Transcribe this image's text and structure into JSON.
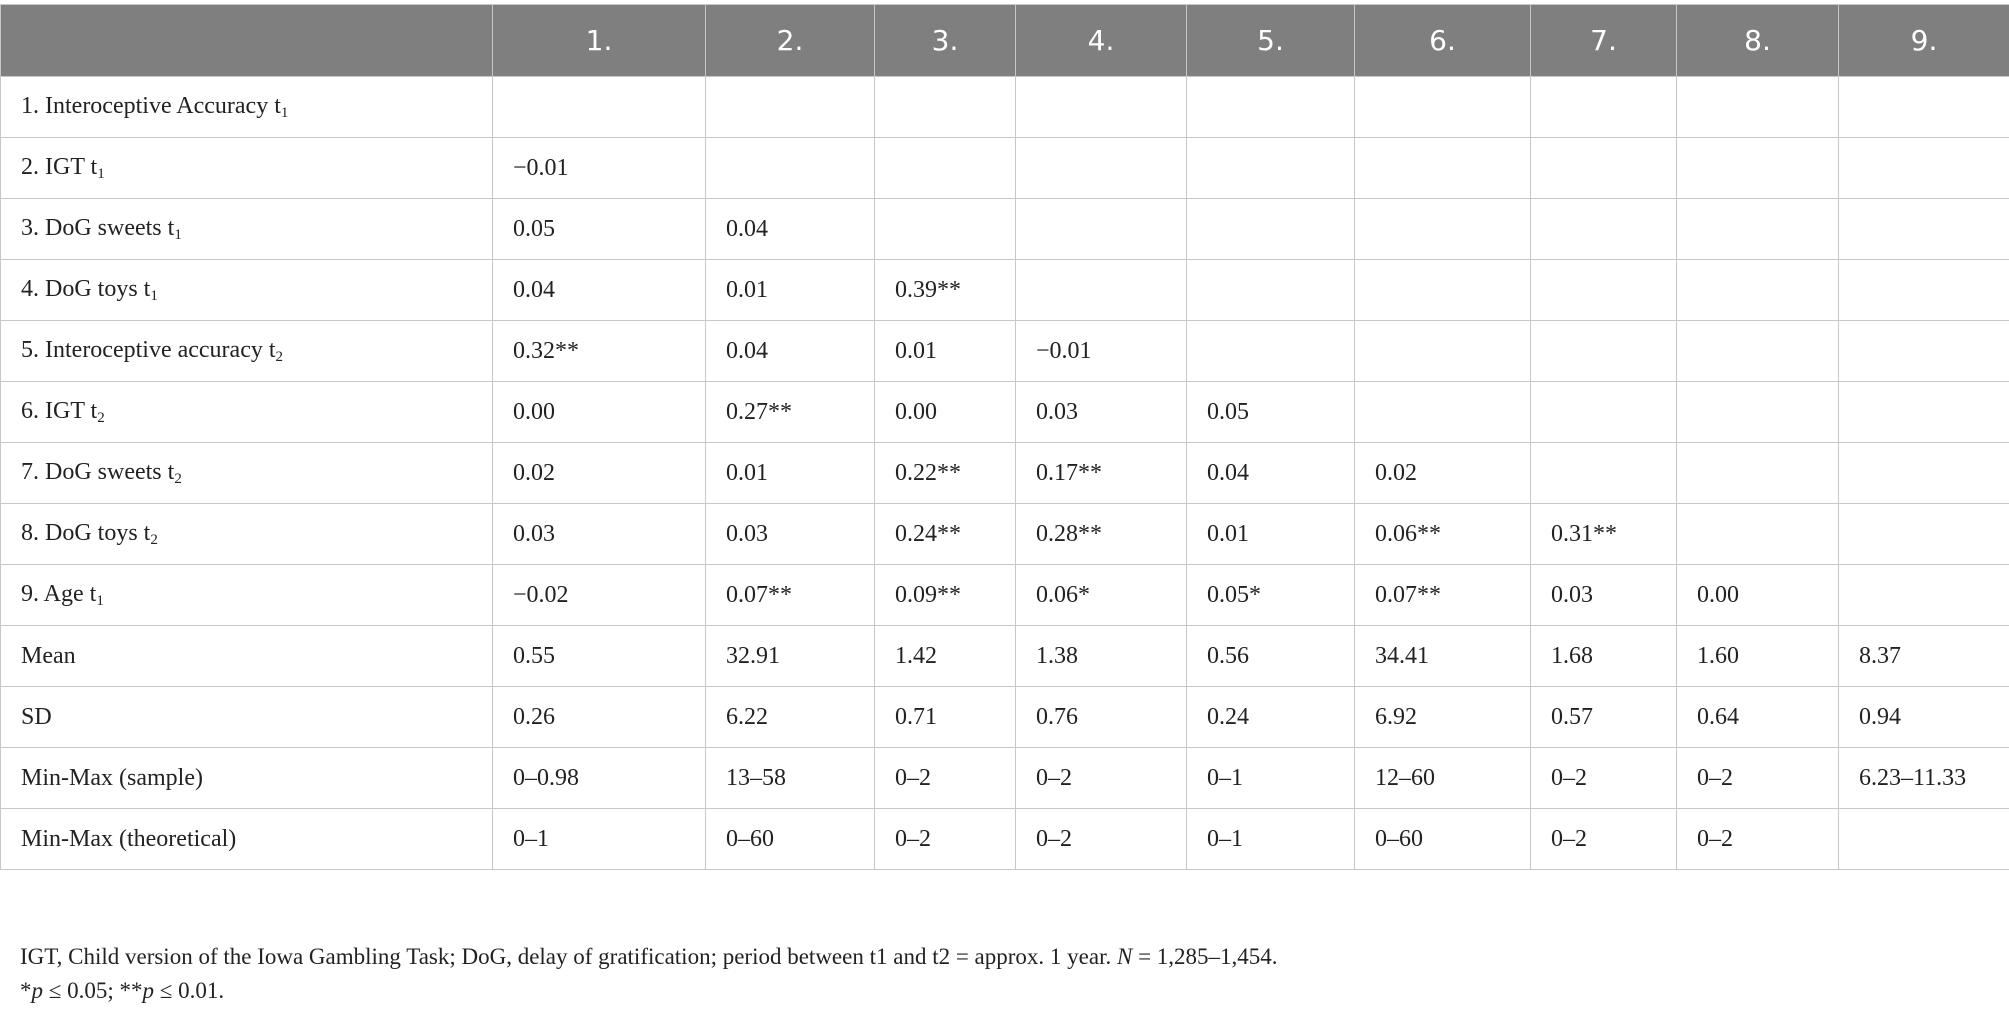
{
  "table": {
    "header": [
      null,
      "1.",
      "2.",
      "3.",
      "4.",
      "5.",
      "6.",
      "7.",
      "8.",
      "9."
    ],
    "rows": [
      {
        "label": "1. Interoceptive Accuracy t",
        "sub": "1",
        "cells": [
          null,
          null,
          null,
          null,
          null,
          null,
          null,
          null,
          null
        ]
      },
      {
        "label": "2. IGT t",
        "sub": "1",
        "cells": [
          "−0.01",
          null,
          null,
          null,
          null,
          null,
          null,
          null,
          null
        ]
      },
      {
        "label": "3. DoG sweets t",
        "sub": "1",
        "cells": [
          "0.05",
          "0.04",
          null,
          null,
          null,
          null,
          null,
          null,
          null
        ]
      },
      {
        "label": "4. DoG toys t",
        "sub": "1",
        "cells": [
          "0.04",
          "0.01",
          "0.39**",
          null,
          null,
          null,
          null,
          null,
          null
        ]
      },
      {
        "label": "5. Interoceptive accuracy t",
        "sub": "2",
        "cells": [
          "0.32**",
          "0.04",
          "0.01",
          "−0.01",
          null,
          null,
          null,
          null,
          null
        ]
      },
      {
        "label": "6. IGT t",
        "sub": "2",
        "cells": [
          "0.00",
          "0.27**",
          "0.00",
          "0.03",
          "0.05",
          null,
          null,
          null,
          null
        ]
      },
      {
        "label": "7. DoG sweets t",
        "sub": "2",
        "cells": [
          "0.02",
          "0.01",
          "0.22**",
          "0.17**",
          "0.04",
          "0.02",
          null,
          null,
          null
        ]
      },
      {
        "label": "8. DoG toys t",
        "sub": "2",
        "cells": [
          "0.03",
          "0.03",
          "0.24**",
          "0.28**",
          "0.01",
          "0.06**",
          "0.31**",
          null,
          null
        ]
      },
      {
        "label": "9. Age t",
        "sub": "1",
        "cells": [
          "−0.02",
          "0.07**",
          "0.09**",
          "0.06*",
          "0.05*",
          "0.07**",
          "0.03",
          "0.00",
          null
        ]
      },
      {
        "label": "Mean",
        "cells": [
          "0.55",
          "32.91",
          "1.42",
          "1.38",
          "0.56",
          "34.41",
          "1.68",
          "1.60",
          "8.37"
        ]
      },
      {
        "label": "SD",
        "cells": [
          "0.26",
          "6.22",
          "0.71",
          "0.76",
          "0.24",
          "6.92",
          "0.57",
          "0.64",
          "0.94"
        ]
      },
      {
        "label": "Min-Max (sample)",
        "cells": [
          "0–0.98",
          "13–58",
          "0–2",
          "0–2",
          "0–1",
          "12–60",
          "0–2",
          "0–2",
          "6.23–11.33"
        ]
      },
      {
        "label": "Min-Max (theoretical)",
        "cells": [
          "0–1",
          "0–60",
          "0–2",
          "0–2",
          "0–1",
          "0–60",
          "0–2",
          "0–2",
          null
        ]
      }
    ]
  },
  "notes": [
    [
      {
        "text": "IGT, Child version of the Iowa Gambling Task; DoG, delay of gratification; period between t1 and t2 = approx. 1 year. "
      },
      {
        "text": "N",
        "italic": true
      },
      {
        "text": " = 1,285–1,454."
      }
    ],
    [
      {
        "text": "*"
      },
      {
        "text": "p",
        "italic": true
      },
      {
        "text": " ≤ 0.05; **"
      },
      {
        "text": "p",
        "italic": true
      },
      {
        "text": " ≤ 0.01."
      }
    ]
  ]
}
